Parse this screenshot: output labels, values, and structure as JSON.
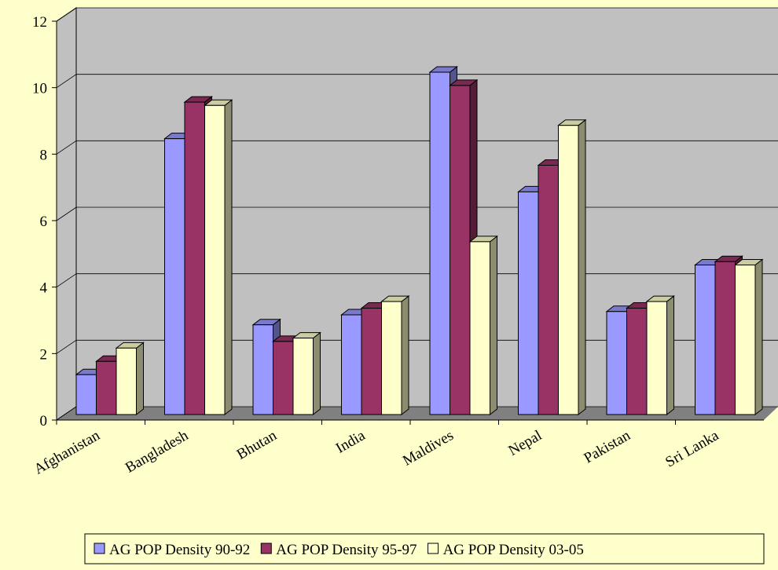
{
  "chart_data": {
    "type": "bar3d",
    "categories": [
      "Afghanistan",
      "Bangladesh",
      "Bhutan",
      "India",
      "Maldives",
      "Nepal",
      "Pakistan",
      "Sri Lanka"
    ],
    "series": [
      {
        "name": "AG POP Density 90-92",
        "color": "#9999ff",
        "values": [
          1.2,
          8.3,
          2.7,
          3.0,
          10.3,
          6.7,
          3.1,
          4.5
        ]
      },
      {
        "name": "AG POP Density 95-97",
        "color": "#993366",
        "values": [
          1.6,
          9.4,
          2.2,
          3.2,
          9.9,
          7.5,
          3.2,
          4.6
        ]
      },
      {
        "name": "AG POP Density 03-05",
        "color": "#ffffcc",
        "values": [
          2.0,
          9.3,
          2.3,
          3.4,
          5.2,
          8.7,
          3.4,
          4.5
        ]
      }
    ],
    "ylim": [
      0,
      12
    ],
    "yticks": [
      0,
      2,
      4,
      6,
      8,
      10,
      12
    ],
    "grid": true,
    "legend": "bottom"
  }
}
